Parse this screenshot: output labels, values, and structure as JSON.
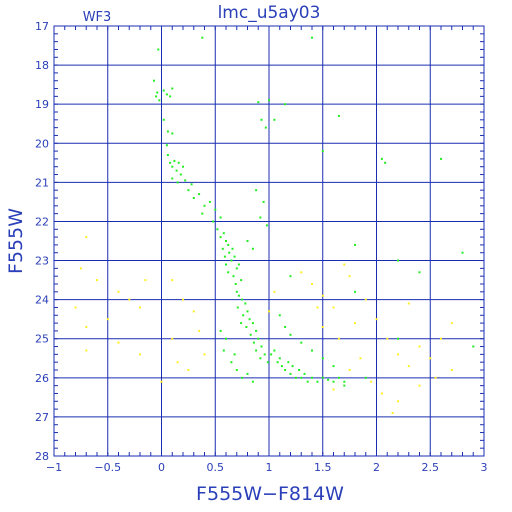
{
  "chart_data": {
    "type": "scatter",
    "title": "lmc_u5ay03",
    "panel_label": "WF3",
    "xlabel": "F555W−F814W",
    "ylabel": "F555W",
    "xlim": [
      -1,
      3
    ],
    "ylim": [
      17,
      28
    ],
    "y_inverted": true,
    "x_ticks": [
      -1,
      -0.5,
      0,
      0.5,
      1,
      1.5,
      2,
      2.5,
      3
    ],
    "x_tick_labels": [
      "−1",
      "−0.5",
      "0",
      "0.5",
      "1",
      "1.5",
      "2",
      "2.5",
      "3"
    ],
    "y_ticks": [
      17,
      18,
      19,
      20,
      21,
      22,
      23,
      24,
      25,
      26,
      27,
      28
    ],
    "y_tick_labels": [
      "17",
      "18",
      "19",
      "20",
      "21",
      "22",
      "23",
      "24",
      "25",
      "26",
      "27",
      "28"
    ],
    "grid": true,
    "series": [
      {
        "color": "#22ee22",
        "points": [
          [
            -0.03,
            17.6
          ],
          [
            0.38,
            17.3
          ],
          [
            1.4,
            17.3
          ],
          [
            -0.07,
            18.4
          ],
          [
            -0.04,
            18.7
          ],
          [
            -0.05,
            18.8
          ],
          [
            -0.02,
            18.9
          ],
          [
            0.02,
            18.65
          ],
          [
            0.05,
            18.75
          ],
          [
            0.1,
            18.6
          ],
          [
            0.08,
            18.8
          ],
          [
            0.9,
            18.95
          ],
          [
            1.0,
            18.9
          ],
          [
            1.15,
            19.0
          ],
          [
            0.93,
            19.4
          ],
          [
            0.97,
            19.6
          ],
          [
            1.05,
            19.4
          ],
          [
            1.65,
            19.3
          ],
          [
            0.02,
            19.4
          ],
          [
            0.06,
            19.7
          ],
          [
            0.1,
            19.75
          ],
          [
            0.05,
            20.05
          ],
          [
            1.5,
            20.2
          ],
          [
            2.05,
            20.4
          ],
          [
            2.08,
            20.5
          ],
          [
            2.6,
            20.4
          ],
          [
            0.06,
            20.3
          ],
          [
            0.08,
            20.5
          ],
          [
            0.1,
            20.6
          ],
          [
            0.12,
            20.45
          ],
          [
            0.14,
            20.7
          ],
          [
            0.16,
            20.5
          ],
          [
            0.18,
            20.8
          ],
          [
            0.2,
            20.6
          ],
          [
            0.1,
            20.9
          ],
          [
            0.22,
            20.95
          ],
          [
            0.15,
            21.0
          ],
          [
            0.25,
            21.2
          ],
          [
            0.28,
            21.05
          ],
          [
            0.3,
            21.4
          ],
          [
            0.35,
            21.3
          ],
          [
            0.4,
            21.6
          ],
          [
            0.45,
            21.5
          ],
          [
            0.38,
            21.8
          ],
          [
            0.5,
            21.7
          ],
          [
            0.55,
            21.9
          ],
          [
            0.48,
            22.0
          ],
          [
            0.88,
            21.2
          ],
          [
            0.95,
            21.5
          ],
          [
            0.92,
            21.9
          ],
          [
            0.98,
            22.1
          ],
          [
            0.52,
            22.2
          ],
          [
            0.55,
            22.4
          ],
          [
            0.58,
            22.3
          ],
          [
            0.6,
            22.5
          ],
          [
            0.62,
            22.6
          ],
          [
            0.57,
            22.7
          ],
          [
            0.63,
            22.8
          ],
          [
            0.59,
            22.9
          ],
          [
            0.65,
            23.0
          ],
          [
            0.66,
            22.7
          ],
          [
            0.68,
            22.9
          ],
          [
            0.6,
            23.1
          ],
          [
            0.7,
            23.2
          ],
          [
            0.62,
            23.3
          ],
          [
            0.72,
            23.1
          ],
          [
            0.67,
            23.4
          ],
          [
            0.74,
            23.5
          ],
          [
            0.69,
            23.6
          ],
          [
            0.7,
            23.8
          ],
          [
            0.72,
            23.9
          ],
          [
            0.75,
            24.0
          ],
          [
            0.78,
            24.1
          ],
          [
            0.71,
            24.2
          ],
          [
            0.8,
            24.3
          ],
          [
            0.76,
            24.4
          ],
          [
            0.82,
            24.5
          ],
          [
            0.74,
            24.6
          ],
          [
            0.85,
            24.6
          ],
          [
            0.79,
            24.7
          ],
          [
            0.88,
            24.8
          ],
          [
            0.83,
            24.9
          ],
          [
            0.9,
            25.0
          ],
          [
            0.86,
            25.1
          ],
          [
            0.93,
            25.2
          ],
          [
            0.88,
            25.3
          ],
          [
            0.96,
            25.4
          ],
          [
            0.92,
            25.5
          ],
          [
            0.99,
            25.6
          ],
          [
            1.02,
            25.4
          ],
          [
            1.05,
            25.3
          ],
          [
            1.08,
            25.6
          ],
          [
            1.1,
            25.5
          ],
          [
            1.12,
            25.7
          ],
          [
            1.15,
            25.8
          ],
          [
            1.18,
            25.6
          ],
          [
            1.2,
            25.9
          ],
          [
            1.22,
            25.7
          ],
          [
            1.25,
            26.0
          ],
          [
            1.28,
            25.8
          ],
          [
            1.3,
            26.0
          ],
          [
            1.33,
            25.9
          ],
          [
            1.36,
            26.1
          ],
          [
            1.4,
            26.0
          ],
          [
            1.45,
            26.1
          ],
          [
            1.5,
            26.0
          ],
          [
            1.55,
            26.05
          ],
          [
            1.6,
            26.1
          ],
          [
            1.65,
            26.0
          ],
          [
            1.7,
            26.1
          ],
          [
            0.55,
            24.8
          ],
          [
            0.6,
            25.0
          ],
          [
            0.58,
            25.3
          ],
          [
            0.65,
            25.6
          ],
          [
            0.7,
            25.8
          ],
          [
            0.75,
            26.0
          ],
          [
            0.8,
            25.9
          ],
          [
            0.85,
            26.1
          ],
          [
            0.68,
            25.4
          ],
          [
            1.1,
            24.4
          ],
          [
            1.15,
            24.7
          ],
          [
            1.2,
            24.9
          ],
          [
            1.3,
            25.1
          ],
          [
            1.4,
            25.3
          ],
          [
            1.5,
            25.5
          ],
          [
            1.6,
            25.7
          ],
          [
            0.8,
            22.5
          ],
          [
            0.85,
            22.7
          ],
          [
            1.8,
            22.6
          ],
          [
            2.2,
            23.0
          ],
          [
            2.4,
            23.3
          ],
          [
            2.8,
            22.8
          ],
          [
            1.2,
            23.4
          ],
          [
            1.8,
            23.8
          ],
          [
            2.2,
            25.0
          ],
          [
            2.9,
            25.2
          ],
          [
            1.9,
            26.0
          ],
          [
            1.7,
            26.2
          ]
        ]
      },
      {
        "color": "#ffee22",
        "points": [
          [
            -0.7,
            22.4
          ],
          [
            -0.75,
            23.2
          ],
          [
            -0.6,
            23.5
          ],
          [
            -0.4,
            23.8
          ],
          [
            -0.3,
            24.0
          ],
          [
            -0.2,
            24.2
          ],
          [
            -0.15,
            23.5
          ],
          [
            0.1,
            23.5
          ],
          [
            0.2,
            24.0
          ],
          [
            0.3,
            24.3
          ],
          [
            -0.8,
            24.2
          ],
          [
            -0.7,
            24.7
          ],
          [
            -0.5,
            24.5
          ],
          [
            -0.4,
            25.1
          ],
          [
            -0.2,
            25.4
          ],
          [
            -0.7,
            25.3
          ],
          [
            0.1,
            25.0
          ],
          [
            0.15,
            25.6
          ],
          [
            0.35,
            24.8
          ],
          [
            0.4,
            25.4
          ],
          [
            1.3,
            23.3
          ],
          [
            1.4,
            23.6
          ],
          [
            1.5,
            23.9
          ],
          [
            1.7,
            23.1
          ],
          [
            1.75,
            23.4
          ],
          [
            1.6,
            24.2
          ],
          [
            1.8,
            24.6
          ],
          [
            1.9,
            24.0
          ],
          [
            2.0,
            24.5
          ],
          [
            2.1,
            25.0
          ],
          [
            2.2,
            25.4
          ],
          [
            2.3,
            25.7
          ],
          [
            2.4,
            25.2
          ],
          [
            2.5,
            25.5
          ],
          [
            2.6,
            25.0
          ],
          [
            2.7,
            25.8
          ],
          [
            2.55,
            26.0
          ],
          [
            2.4,
            26.2
          ],
          [
            2.2,
            26.6
          ],
          [
            2.15,
            26.9
          ],
          [
            2.05,
            26.4
          ],
          [
            1.95,
            26.1
          ],
          [
            1.6,
            26.3
          ],
          [
            1.75,
            25.8
          ],
          [
            1.85,
            25.5
          ],
          [
            1.65,
            25.0
          ],
          [
            1.5,
            24.7
          ],
          [
            1.45,
            24.2
          ],
          [
            2.3,
            24.1
          ],
          [
            2.7,
            24.6
          ],
          [
            0.0,
            26.1
          ],
          [
            0.25,
            25.8
          ],
          [
            1.05,
            23.8
          ],
          [
            1.0,
            24.3
          ]
        ]
      }
    ]
  }
}
